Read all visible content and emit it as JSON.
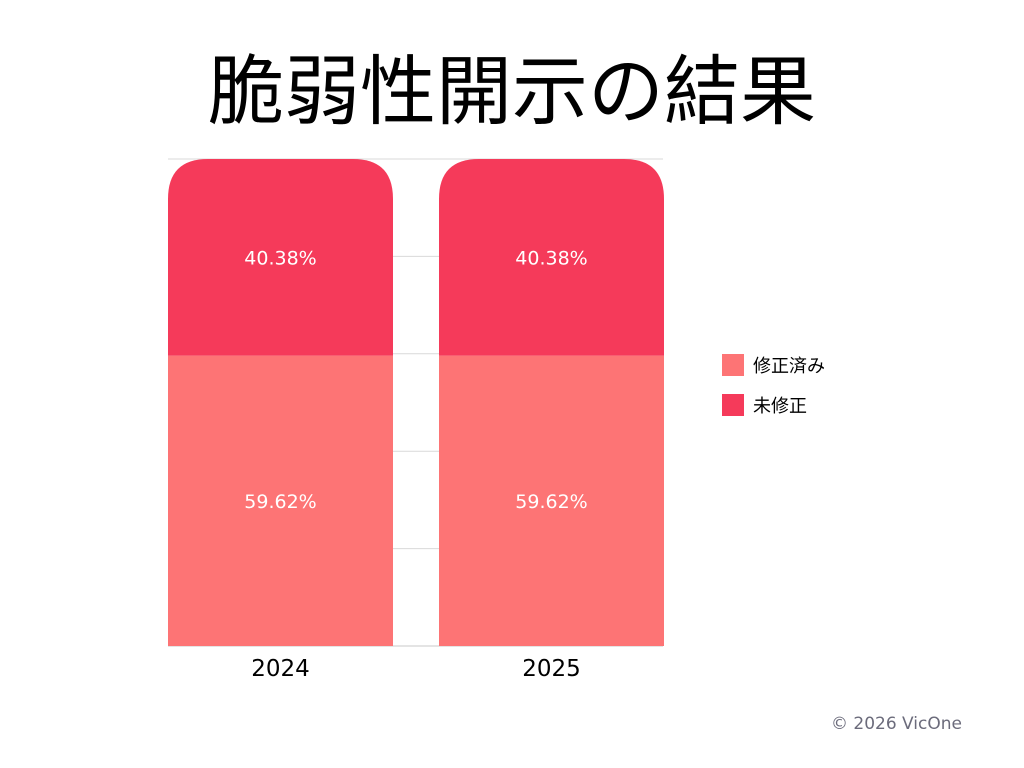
{
  "chart_data": {
    "type": "bar",
    "stacked": true,
    "percent": true,
    "title": "脆弱性開示の結果",
    "categories": [
      "2024",
      "2025"
    ],
    "series": [
      {
        "name": "修正済み",
        "color": "#fd7475",
        "values": [
          59.62,
          59.62
        ],
        "labels": [
          "59.62%",
          "59.62%"
        ]
      },
      {
        "name": "未修正",
        "color": "#f53a5a",
        "values": [
          40.38,
          40.38
        ],
        "labels": [
          "40.38%",
          "40.38%"
        ]
      }
    ],
    "ylim": [
      0,
      100
    ],
    "grid": true,
    "legend_position": "right"
  },
  "footer": {
    "copyright": "© 2026 VicOne"
  }
}
